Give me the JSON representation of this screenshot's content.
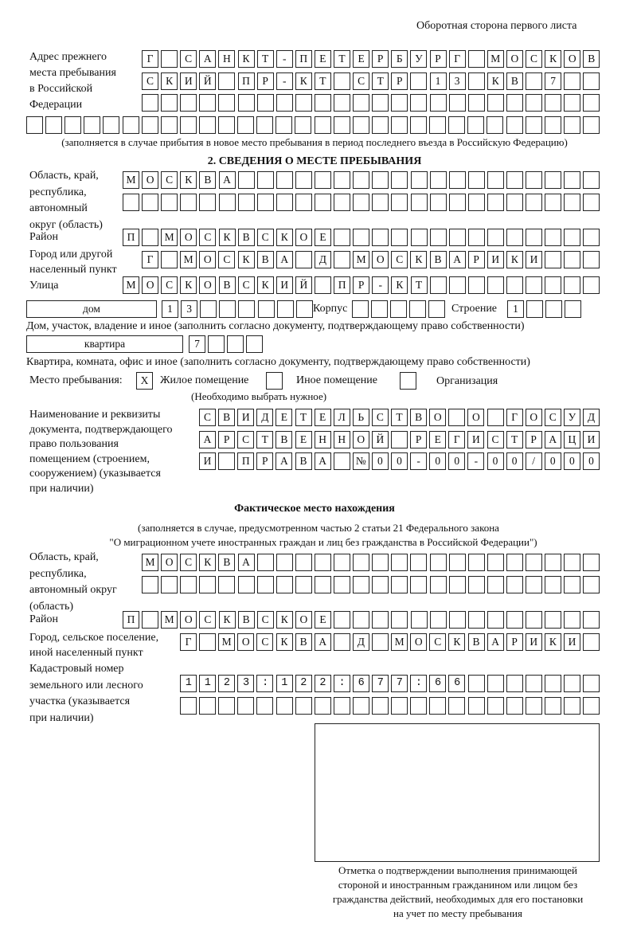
{
  "header": "Оборотная сторона первого листа",
  "previous_address": {
    "label": "Адрес прежнего места пребывания в Российской Федерации",
    "label_lines": [
      "Адрес прежнего",
      "места пребывания",
      "в Российской",
      "Федерации"
    ],
    "rows": [
      "Г САНКТ-ПЕТЕРБУРГ МОСКОВ",
      "СКИЙ ПР-КТ СТР 13 КВ 7",
      "",
      ""
    ],
    "note": "(заполняется в случае прибытия в новое место пребывания в период последнего въезда в Российскую Федерацию)"
  },
  "section2": {
    "title": "2. СВЕДЕНИЯ О МЕСТЕ ПРЕБЫВАНИЯ",
    "region_label": [
      "Область, край,",
      "республика,",
      "автономный",
      "округ (область)"
    ],
    "region_rows": [
      "МОСКВА",
      ""
    ],
    "district_label": "Район",
    "district_row": "П МОСКВСКОЕ",
    "city_label": [
      "Город или другой",
      "населенный пункт"
    ],
    "city_row": "Г МОСКВА Д МОСКВАРИКИ",
    "street_label": "Улица",
    "street_row": "МОСКОВСКИЙ ПР-КТ",
    "house_type": "дом",
    "house_row": "13",
    "korpus_label": "Корпус",
    "korpus_row": "",
    "stroenie_label": "Строение",
    "stroenie_row": "1",
    "house_note": "Дом, участок, владение и иное (заполнить согласно документу, подтверждающему право собственности)",
    "flat_type": "квартира",
    "flat_row": "7",
    "flat_note": "Квартира, комната, офис и иное (заполнить согласно документу, подтверждающему право собственности)",
    "place_label": "Место пребывания:",
    "place_options": [
      {
        "label": "Жилое помещение",
        "mark": "X",
        "checked": true
      },
      {
        "label": "Иное помещение",
        "mark": "",
        "checked": false
      },
      {
        "label": "Организация",
        "mark": "",
        "checked": false
      }
    ],
    "place_note": "(Необходимо выбрать нужное)",
    "doc_label": [
      "Наименование и реквизиты",
      "документа, подтверждающего",
      "право пользования",
      "помещением (строением,",
      "сооружением) (указывается",
      "при наличии)"
    ],
    "doc_rows": [
      "СВИДЕТЕЛЬСТВО О ГОСУД",
      "АРСТВЕННОЙ РЕГИСТРАЦИ",
      "И ПРАВА №00-00-00/000"
    ]
  },
  "actual": {
    "title": "Фактическое место нахождения",
    "note1": "(заполняется в случае, предусмотренном частью 2 статьи 21 Федерального закона",
    "note2": "\"О миграционном учете иностранных граждан и лиц без гражданства в Российской Федерации\")",
    "region_label": [
      "Область, край,",
      "республика,",
      "автономный округ",
      "(область)"
    ],
    "region_rows": [
      "МОСКВА",
      ""
    ],
    "district_label": "Район",
    "district_row": "П МОСКВСКОЕ",
    "city_label": [
      "Город, сельское поселение,",
      "иной населенный пункт"
    ],
    "city_row": "Г МОСКВА Д МОСКВАРИКИ",
    "cadastre_label": [
      "Кадастровый номер",
      "земельного или лесного",
      "участка (указывается",
      "при наличии)"
    ],
    "cadastre_rows": [
      "1123:122:677:66",
      ""
    ]
  },
  "confirmation": {
    "caption": [
      "Отметка о подтверждении выполнения принимающей",
      "стороной и иностранным гражданином или лицом без",
      "гражданства действий, необходимых для его постановки",
      "на учет по месту пребывания"
    ]
  }
}
